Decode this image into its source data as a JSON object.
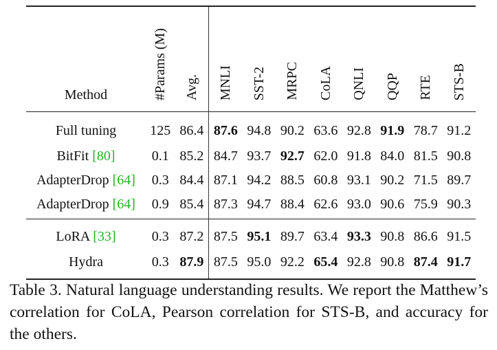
{
  "table": {
    "headers": [
      "Method",
      "#Params (M)",
      "Avg.",
      "MNLI",
      "SST-2",
      "MRPC",
      "CoLA",
      "QNLI",
      "QQP",
      "RTE",
      "STS-B"
    ],
    "groups": [
      [
        {
          "method": "Full tuning",
          "cite": "",
          "params": "125",
          "avg": "86.4",
          "scores": [
            "87.6",
            "94.8",
            "90.2",
            "63.6",
            "92.8",
            "91.9",
            "78.7",
            "91.2"
          ],
          "bold_avg": false,
          "bold": [
            true,
            false,
            false,
            false,
            false,
            true,
            false,
            false
          ]
        },
        {
          "method": "BitFit ",
          "cite": "[80]",
          "params": "0.1",
          "avg": "85.2",
          "scores": [
            "84.7",
            "93.7",
            "92.7",
            "62.0",
            "91.8",
            "84.0",
            "81.5",
            "90.8"
          ],
          "bold_avg": false,
          "bold": [
            false,
            false,
            true,
            false,
            false,
            false,
            false,
            false
          ]
        },
        {
          "method": "AdapterDrop ",
          "cite": "[64]",
          "params": "0.3",
          "avg": "84.4",
          "scores": [
            "87.1",
            "94.2",
            "88.5",
            "60.8",
            "93.1",
            "90.2",
            "71.5",
            "89.7"
          ],
          "bold_avg": false,
          "bold": [
            false,
            false,
            false,
            false,
            false,
            false,
            false,
            false
          ]
        },
        {
          "method": "AdapterDrop ",
          "cite": "[64]",
          "params": "0.9",
          "avg": "85.4",
          "scores": [
            "87.3",
            "94.7",
            "88.4",
            "62.6",
            "93.0",
            "90.6",
            "75.9",
            "90.3"
          ],
          "bold_avg": false,
          "bold": [
            false,
            false,
            false,
            false,
            false,
            false,
            false,
            false
          ]
        }
      ],
      [
        {
          "method": "LoRA ",
          "cite": "[33]",
          "params": "0.3",
          "avg": "87.2",
          "scores": [
            "87.5",
            "95.1",
            "89.7",
            "63.4",
            "93.3",
            "90.8",
            "86.6",
            "91.5"
          ],
          "bold_avg": false,
          "bold": [
            false,
            true,
            false,
            false,
            true,
            false,
            false,
            false
          ]
        },
        {
          "method": "Hydra",
          "cite": "",
          "params": "0.3",
          "avg": "87.9",
          "scores": [
            "87.5",
            "95.0",
            "92.2",
            "65.4",
            "92.8",
            "90.8",
            "87.4",
            "91.7"
          ],
          "bold_avg": true,
          "bold": [
            false,
            false,
            false,
            true,
            false,
            false,
            true,
            true
          ]
        }
      ]
    ]
  },
  "caption": "Table 3.  Natural language understanding results.  We report the Matthew’s correlation for CoLA, Pearson correlation for STS-B, and accuracy for the others.",
  "colors": {
    "citation": "#22b322",
    "text": "#111111"
  }
}
